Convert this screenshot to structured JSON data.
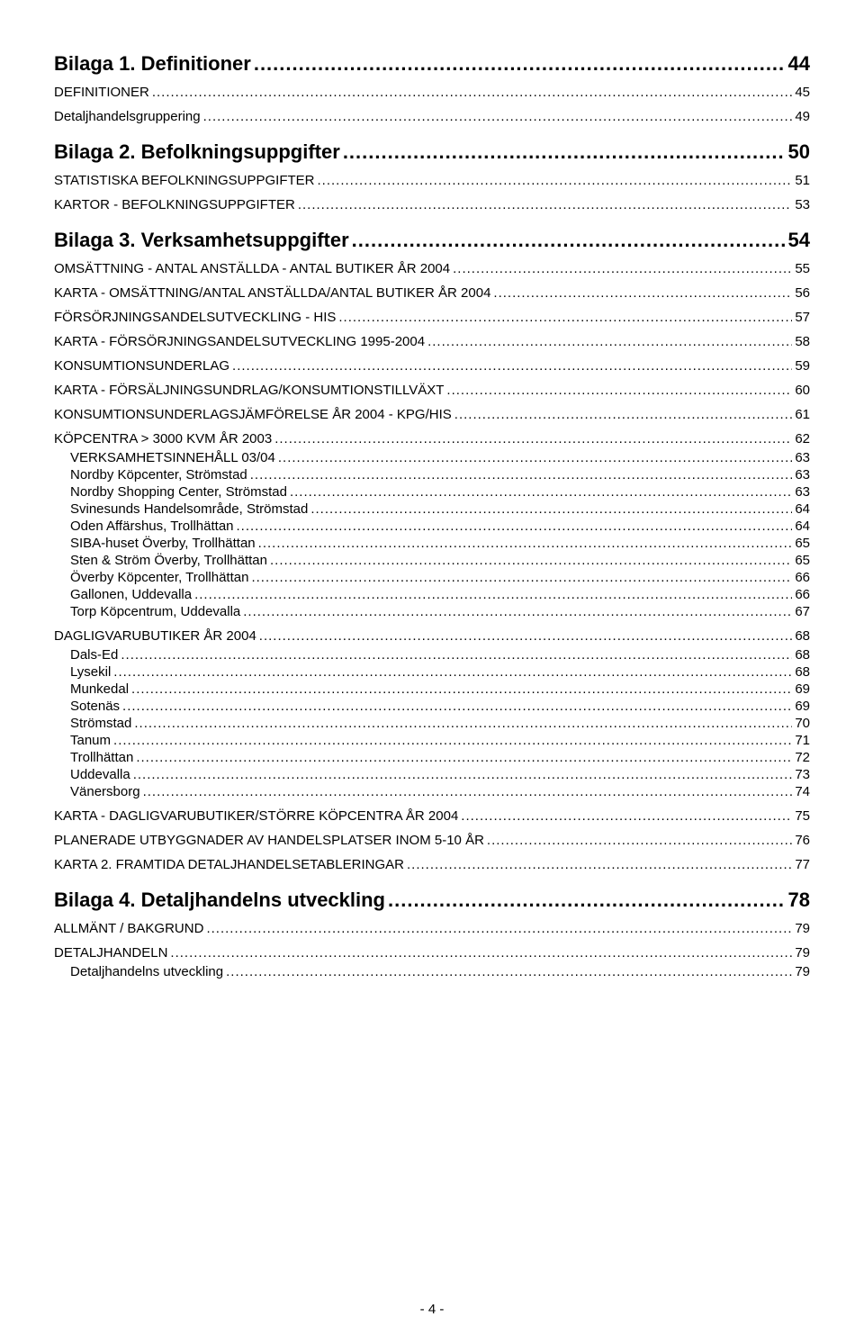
{
  "entries": [
    {
      "level": 1,
      "label": "Bilaga 1.  Definitioner",
      "page": "44"
    },
    {
      "level": 2,
      "label": "DEFINITIONER",
      "page": "45"
    },
    {
      "level": 2,
      "label": "Detaljhandelsgruppering",
      "page": "49"
    },
    {
      "level": 1,
      "label": "Bilaga 2.  Befolkningsuppgifter",
      "page": "50"
    },
    {
      "level": 2,
      "label": "STATISTISKA BEFOLKNINGSUPPGIFTER",
      "page": "51"
    },
    {
      "level": 2,
      "label": "KARTOR - BEFOLKNINGSUPPGIFTER",
      "page": "53"
    },
    {
      "level": 1,
      "label": "Bilaga 3.  Verksamhetsuppgifter",
      "page": "54"
    },
    {
      "level": 2,
      "label": "OMSÄTTNING - ANTAL ANSTÄLLDA - ANTAL BUTIKER ÅR 2004",
      "page": "55"
    },
    {
      "level": 2,
      "label": "KARTA - OMSÄTTNING/ANTAL ANSTÄLLDA/ANTAL BUTIKER ÅR 2004",
      "page": "56"
    },
    {
      "level": 2,
      "label": "FÖRSÖRJNINGSANDELSUTVECKLING - HIS",
      "page": "57"
    },
    {
      "level": 2,
      "label": "KARTA - FÖRSÖRJNINGSANDELSUTVECKLING 1995-2004",
      "page": "58"
    },
    {
      "level": 2,
      "label": "KONSUMTIONSUNDERLAG",
      "page": "59"
    },
    {
      "level": 2,
      "label": "KARTA - FÖRSÄLJNINGSUNDRLAG/KONSUMTIONSTILLVÄXT",
      "page": "60"
    },
    {
      "level": 2,
      "label": "KONSUMTIONSUNDERLAGSJÄMFÖRELSE ÅR 2004 - KPG/HIS",
      "page": "61"
    },
    {
      "level": 2,
      "label": "KÖPCENTRA > 3000 KVM ÅR 2003",
      "page": "62"
    },
    {
      "level": 3,
      "label": "VERKSAMHETSINNEHÅLL 03/04",
      "page": "63"
    },
    {
      "level": 3,
      "label": "Nordby Köpcenter, Strömstad",
      "page": "63"
    },
    {
      "level": 3,
      "label": "Nordby Shopping Center, Strömstad",
      "page": "63"
    },
    {
      "level": 3,
      "label": "Svinesunds Handelsområde, Strömstad",
      "page": "64"
    },
    {
      "level": 3,
      "label": "Oden Affärshus, Trollhättan",
      "page": "64"
    },
    {
      "level": 3,
      "label": "SIBA-huset Överby, Trollhättan",
      "page": "65"
    },
    {
      "level": 3,
      "label": "Sten & Ström Överby, Trollhättan",
      "page": "65"
    },
    {
      "level": 3,
      "label": "Överby Köpcenter, Trollhättan",
      "page": "66"
    },
    {
      "level": 3,
      "label": "Gallonen, Uddevalla",
      "page": "66"
    },
    {
      "level": 3,
      "label": "Torp Köpcentrum, Uddevalla",
      "page": "67"
    },
    {
      "level": 2,
      "label": "DAGLIGVARUBUTIKER ÅR 2004",
      "page": "68"
    },
    {
      "level": 3,
      "label": "Dals-Ed",
      "page": "68"
    },
    {
      "level": 3,
      "label": "Lysekil",
      "page": "68"
    },
    {
      "level": 3,
      "label": "Munkedal",
      "page": "69"
    },
    {
      "level": 3,
      "label": "Sotenäs",
      "page": "69"
    },
    {
      "level": 3,
      "label": "Strömstad",
      "page": "70"
    },
    {
      "level": 3,
      "label": "Tanum",
      "page": "71"
    },
    {
      "level": 3,
      "label": "Trollhättan",
      "page": "72"
    },
    {
      "level": 3,
      "label": "Uddevalla",
      "page": "73"
    },
    {
      "level": 3,
      "label": "Vänersborg",
      "page": "74"
    },
    {
      "level": 2,
      "label": "KARTA - DAGLIGVARUBUTIKER/STÖRRE KÖPCENTRA ÅR 2004",
      "page": "75"
    },
    {
      "level": 2,
      "label": "PLANERADE UTBYGGNADER AV HANDELSPLATSER INOM 5-10 ÅR",
      "page": "76"
    },
    {
      "level": 2,
      "label": "KARTA 2. FRAMTIDA DETALJHANDELSETABLERINGAR",
      "page": "77"
    },
    {
      "level": 1,
      "label": "Bilaga 4.  Detaljhandelns utveckling",
      "page": "78"
    },
    {
      "level": 2,
      "label": "ALLMÄNT / BAKGRUND",
      "page": "79"
    },
    {
      "level": 2,
      "label": "DETALJHANDELN",
      "page": "79"
    },
    {
      "level": 3,
      "label": "Detaljhandelns utveckling",
      "page": "79"
    }
  ],
  "pageNumber": "- 4 -"
}
